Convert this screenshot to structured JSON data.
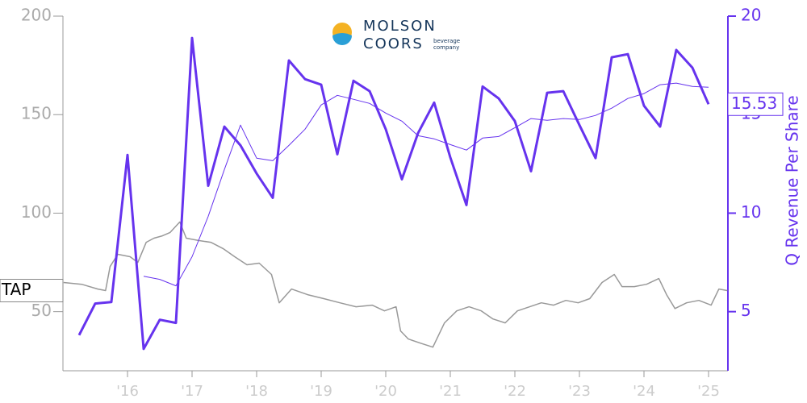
{
  "logo": {
    "line1": "MOLSON",
    "line2": "COORS",
    "line3": "beverage",
    "line4": "company"
  },
  "chart_data": {
    "type": "line",
    "xlim": [
      2015,
      2025.3
    ],
    "xticks": [
      {
        "value": 2016,
        "label": "'16"
      },
      {
        "value": 2017,
        "label": "'17"
      },
      {
        "value": 2018,
        "label": "'18"
      },
      {
        "value": 2019,
        "label": "'19"
      },
      {
        "value": 2020,
        "label": "'20"
      },
      {
        "value": 2021,
        "label": "'21"
      },
      {
        "value": 2022,
        "label": "'22"
      },
      {
        "value": 2023,
        "label": "'23"
      },
      {
        "value": 2024,
        "label": "'24"
      },
      {
        "value": 2025,
        "label": "'25"
      }
    ],
    "ylim": [
      20,
      200
    ],
    "yticks": [
      50,
      100,
      150,
      200
    ],
    "y2lim": [
      2,
      20
    ],
    "y2ticks": [
      5,
      10,
      15,
      20
    ],
    "y2label": "Q Revenue Per Share",
    "series": [
      {
        "name": "TAP",
        "color": "#999999",
        "axis": "y",
        "x": [
          2015.01,
          2015.29,
          2015.54,
          2015.66,
          2015.73,
          2015.85,
          2016.04,
          2016.16,
          2016.29,
          2016.41,
          2016.54,
          2016.66,
          2016.81,
          2016.91,
          2017.1,
          2017.29,
          2017.48,
          2017.66,
          2017.85,
          2018.04,
          2018.23,
          2018.35,
          2018.54,
          2018.79,
          2019.04,
          2019.29,
          2019.54,
          2019.79,
          2019.98,
          2020.16,
          2020.23,
          2020.35,
          2020.54,
          2020.73,
          2020.91,
          2021.1,
          2021.29,
          2021.48,
          2021.66,
          2021.85,
          2022.04,
          2022.23,
          2022.41,
          2022.6,
          2022.79,
          2022.98,
          2023.16,
          2023.35,
          2023.54,
          2023.66,
          2023.85,
          2024.04,
          2024.23,
          2024.35,
          2024.48,
          2024.66,
          2024.85,
          2025.04,
          2025.16,
          2025.29
        ],
        "values": [
          64.8,
          63.9,
          61.5,
          60.7,
          72.9,
          79.1,
          77.9,
          75.0,
          85.2,
          87.3,
          88.5,
          90.2,
          95.5,
          87.3,
          86.1,
          85.2,
          82.0,
          77.9,
          73.8,
          74.6,
          68.9,
          54.5,
          61.5,
          58.6,
          56.6,
          54.5,
          52.5,
          53.3,
          50.4,
          52.5,
          40.2,
          36.1,
          34.0,
          32.0,
          44.3,
          50.4,
          52.5,
          50.4,
          46.3,
          44.3,
          50.4,
          52.5,
          54.5,
          53.3,
          55.7,
          54.5,
          56.6,
          64.8,
          68.9,
          62.7,
          62.7,
          63.9,
          66.8,
          58.6,
          51.6,
          54.5,
          55.7,
          53.3,
          61.5,
          60.7
        ]
      },
      {
        "color": "#6633ee",
        "axis": "y2",
        "width": 3,
        "x": [
          2015.25,
          2015.5,
          2015.75,
          2016,
          2016.25,
          2016.5,
          2016.75,
          2017,
          2017.25,
          2017.5,
          2017.75,
          2018,
          2018.25,
          2018.5,
          2018.75,
          2019,
          2019.25,
          2019.5,
          2019.75,
          2020,
          2020.25,
          2020.5,
          2020.75,
          2021,
          2021.25,
          2021.5,
          2021.75,
          2022,
          2022.25,
          2022.5,
          2022.75,
          2023,
          2023.25,
          2023.5,
          2023.75,
          2024,
          2024.25,
          2024.5,
          2024.75,
          2025
        ],
        "values": [
          3.81,
          5.41,
          5.49,
          12.95,
          3.11,
          4.59,
          4.43,
          18.89,
          11.39,
          14.39,
          13.44,
          12.01,
          10.78,
          17.75,
          16.8,
          16.52,
          12.99,
          16.72,
          16.19,
          14.26,
          11.72,
          14.06,
          15.61,
          12.83,
          10.41,
          16.43,
          15.82,
          14.67,
          12.13,
          16.11,
          16.19,
          14.47,
          12.79,
          17.91,
          18.07,
          15.45,
          14.39,
          18.28,
          17.38,
          15.53
        ]
      },
      {
        "color": "#6633ee",
        "axis": "y2",
        "width": 1,
        "x": [
          2015.25,
          2015.5,
          2015.75,
          2016,
          2016.25,
          2016.5,
          2016.75,
          2017,
          2017.25,
          2017.5,
          2017.75,
          2018,
          2018.25,
          2018.5,
          2018.75,
          2019,
          2019.25,
          2019.5,
          2019.75,
          2020,
          2020.25,
          2020.5,
          2020.75,
          2021,
          2021.25,
          2021.5,
          2021.75,
          2022,
          2022.25,
          2022.5,
          2022.75,
          2023,
          2023.25,
          2023.5,
          2023.75,
          2024,
          2024.25,
          2024.5,
          2024.75,
          2025
        ],
        "values": [
          null,
          null,
          null,
          null,
          6.8,
          6.64,
          6.31,
          7.79,
          9.84,
          12.21,
          14.47,
          12.79,
          12.66,
          13.44,
          14.26,
          15.49,
          15.98,
          15.78,
          15.57,
          15.08,
          14.67,
          13.93,
          13.77,
          13.48,
          13.2,
          13.81,
          13.89,
          14.34,
          14.8,
          14.71,
          14.8,
          14.75,
          14.96,
          15.33,
          15.82,
          16.07,
          16.52,
          16.6,
          16.43,
          16.39
        ]
      }
    ]
  }
}
